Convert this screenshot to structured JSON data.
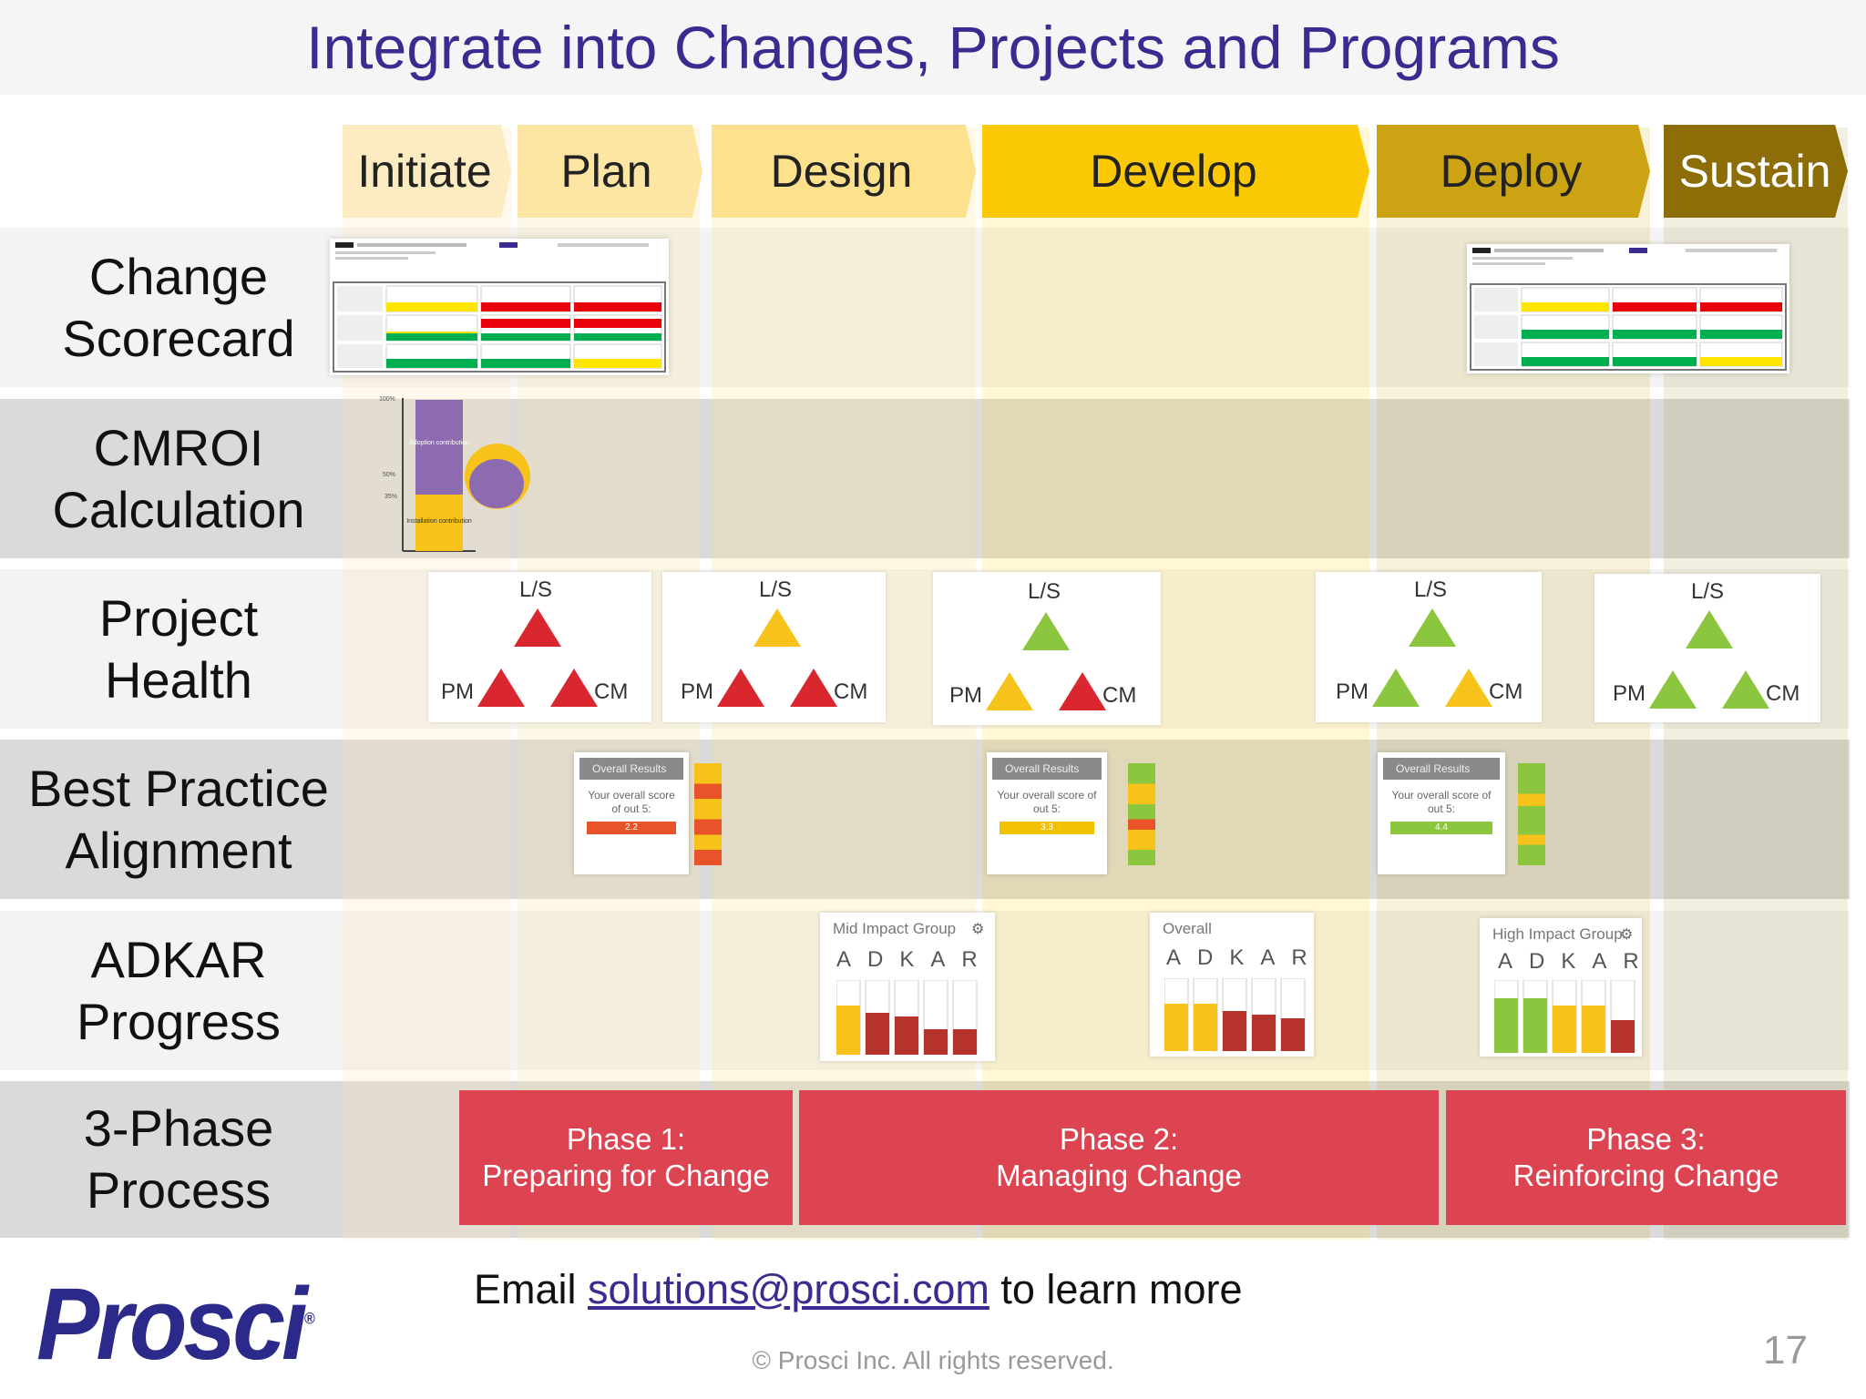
{
  "title": "Integrate into Changes, Projects and Programs",
  "phases_header": [
    "Initiate",
    "Plan",
    "Design",
    "Develop",
    "Deploy",
    "Sustain"
  ],
  "rows": [
    {
      "label": "Change\nScorecard"
    },
    {
      "label": "CMROI\nCalculation"
    },
    {
      "label": "Project\nHealth"
    },
    {
      "label": "Best Practice\nAlignment"
    },
    {
      "label": "ADKAR\nProgress"
    },
    {
      "label": "3-Phase\nProcess"
    }
  ],
  "cmroi": {
    "tick_top": "100%",
    "tick_mid": "50%",
    "tick_low": "35%",
    "adoption_label": "Adoption contribution",
    "installation_label": "Installation contribution"
  },
  "triangle_labels": {
    "top": "L/S",
    "left": "PM",
    "right": "CM"
  },
  "best_practice": {
    "header": "Overall Results",
    "text": "Your overall score of out 5:",
    "scores": [
      "2.2",
      "3.3",
      "4.4"
    ],
    "colors": [
      "#e8532a",
      "#f2c200",
      "#8cc63f"
    ]
  },
  "adkar": {
    "titles": [
      "Mid Impact Group",
      "Overall",
      "High Impact Group"
    ],
    "letters": "ADKAR"
  },
  "process_phases": [
    {
      "line1": "Phase 1:",
      "line2": "Preparing for Change"
    },
    {
      "line1": "Phase 2:",
      "line2": "Managing Change"
    },
    {
      "line1": "Phase 3:",
      "line2": "Reinforcing Change"
    }
  ],
  "footer": {
    "email_prefix": "Email ",
    "email": "solutions@prosci.com",
    "email_suffix": " to learn more",
    "copyright": "© Prosci Inc. All rights reserved.",
    "page_number": "17",
    "logo_text": "Prosci",
    "logo_mark": "®"
  },
  "colors": {
    "title": "#3b2a8f",
    "phase_red": "#dc4452",
    "red": "#d9262f",
    "yellow": "#f7c21a",
    "green": "#8cc63f",
    "logo": "#2b2a8a"
  }
}
